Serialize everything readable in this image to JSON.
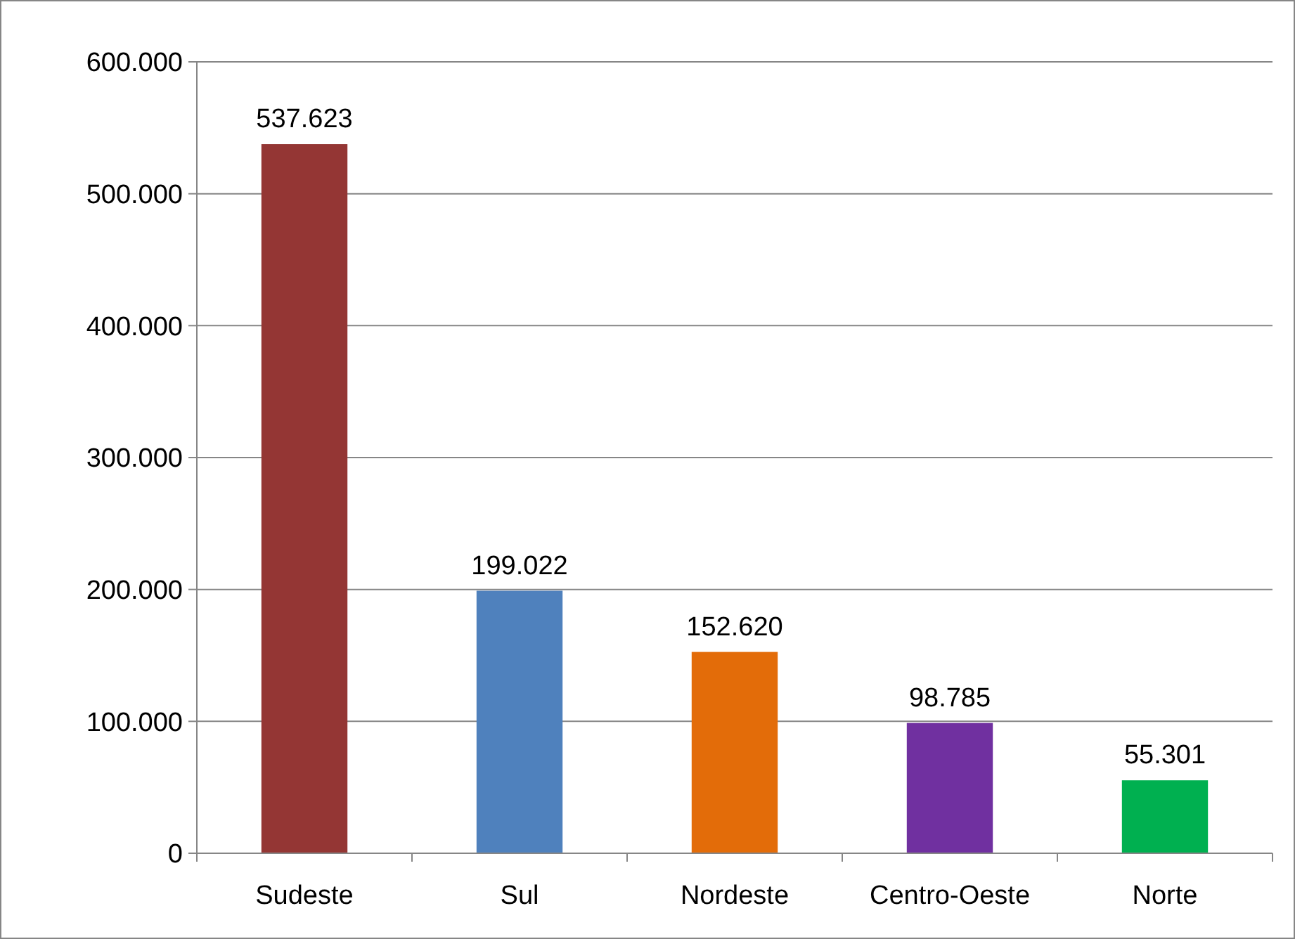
{
  "chart_data": {
    "type": "bar",
    "categories": [
      "Sudeste",
      "Sul",
      "Nordeste",
      "Centro-Oeste",
      "Norte"
    ],
    "values": [
      537623,
      199022,
      152620,
      98785,
      55301
    ],
    "colors": [
      "#943634",
      "#4f81bd",
      "#e36c09",
      "#7030a0",
      "#00b050"
    ],
    "value_labels": [
      "537.623",
      "199.022",
      "152.620",
      "98.785",
      "55.301"
    ],
    "ylim": [
      0,
      600000
    ],
    "yticks": [
      {
        "value": 0,
        "label": "0"
      },
      {
        "value": 100000,
        "label": "100.000"
      },
      {
        "value": 200000,
        "label": "200.000"
      },
      {
        "value": 300000,
        "label": "300.000"
      },
      {
        "value": 400000,
        "label": "400.000"
      },
      {
        "value": 500000,
        "label": "500.000"
      },
      {
        "value": 600000,
        "label": "600.000"
      }
    ],
    "grid": "y"
  }
}
